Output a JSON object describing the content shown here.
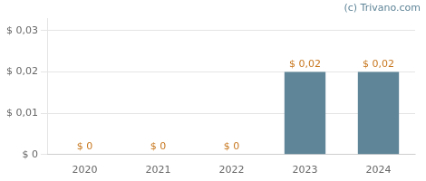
{
  "chart_data": {
    "type": "bar",
    "categories": [
      "2020",
      "2021",
      "2022",
      "2023",
      "2024"
    ],
    "values": [
      0.0,
      0.0,
      0.0,
      0.02,
      0.02
    ],
    "value_labels": [
      "$ 0",
      "$ 0",
      "$ 0",
      "$ 0,02",
      "$ 0,02"
    ],
    "data_labels": true,
    "color": "#5f8598",
    "ylim": [
      0,
      0.033
    ],
    "yticks": [
      {
        "value": 0.0,
        "label": "$ 0"
      },
      {
        "value": 0.01,
        "label": "$ 0,01"
      },
      {
        "value": 0.02,
        "label": "$ 0,02"
      },
      {
        "value": 0.03,
        "label": "$ 0,03"
      }
    ],
    "grid": true,
    "annotations": [
      "(c) Trivano.com"
    ]
  }
}
